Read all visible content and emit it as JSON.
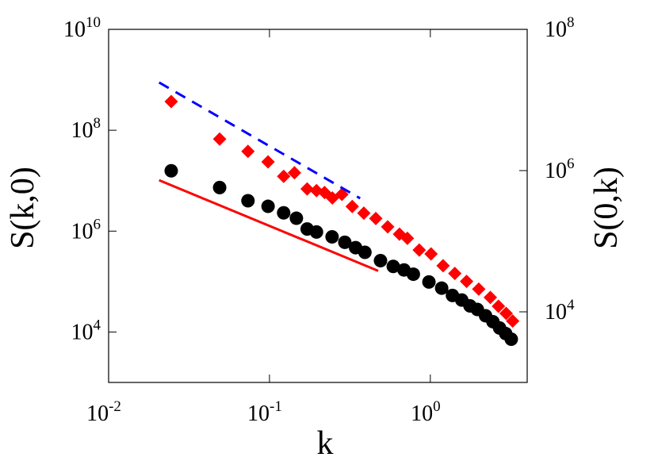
{
  "chart_data": {
    "type": "scatter",
    "xlabel": "k",
    "ylabel": "S(k,0)",
    "y2label": "S(0,k)",
    "xscale": "log",
    "yscale": "log",
    "y2scale": "log",
    "xlim": [
      0.01,
      4
    ],
    "ylim": [
      1000,
      10000000000
    ],
    "y2lim": [
      1000,
      100000000
    ],
    "xticks": [
      {
        "value": 0.01,
        "label": "10^-2"
      },
      {
        "value": 0.1,
        "label": "10^-1"
      },
      {
        "value": 1,
        "label": "10^0"
      }
    ],
    "yticks": [
      {
        "value": 10000,
        "label": "10^4"
      },
      {
        "value": 1000000,
        "label": "10^6"
      },
      {
        "value": 100000000,
        "label": "10^8"
      },
      {
        "value": 10000000000,
        "label": "10^10"
      }
    ],
    "y2ticks": [
      {
        "value": 10000,
        "label": "10^4"
      },
      {
        "value": 1000000,
        "label": "10^6"
      },
      {
        "value": 100000000,
        "label": "10^8"
      }
    ],
    "series": [
      {
        "color": "#000000",
        "marker": "circle",
        "x": [
          0.0245,
          0.049,
          0.0735,
          0.098,
          0.1225,
          0.147,
          0.1715,
          0.196,
          0.245,
          0.294,
          0.343,
          0.392,
          0.49,
          0.588,
          0.686,
          0.784,
          0.98,
          1.176,
          1.372,
          1.568,
          1.764,
          1.96,
          2.205,
          2.45,
          2.695,
          2.94,
          3.185
        ],
        "values": [
          15700000,
          7300000,
          4000000,
          3100000,
          2300000,
          1800000,
          1100000,
          960000,
          770000,
          600000,
          470000,
          380000,
          260000,
          200000,
          170000,
          140000,
          98000,
          74000,
          53000,
          43000,
          33000,
          28000,
          21000,
          16000,
          12000,
          9300,
          7200
        ]
      },
      {
        "color": "#ff0000",
        "marker": "diamond",
        "axis": "y2",
        "x": [
          0.0245,
          0.049,
          0.0735,
          0.098,
          0.1225,
          0.143,
          0.1715,
          0.196,
          0.22,
          0.246,
          0.282,
          0.327,
          0.386,
          0.458,
          0.543,
          0.643,
          0.72,
          0.853,
          1.01,
          1.2,
          1.42,
          1.68,
          2.0,
          2.36,
          2.65,
          2.96,
          3.25
        ],
        "values": [
          9500000,
          2800000,
          1870000,
          1330000,
          830000,
          930000,
          550000,
          520000,
          490000,
          410000,
          460000,
          310000,
          250000,
          210000,
          160000,
          126000,
          110000,
          75000,
          66000,
          45000,
          35000,
          27000,
          21000,
          16000,
          12000,
          9500,
          7400
        ]
      },
      {
        "color": "#ff0000",
        "marker": "none",
        "line": "solid",
        "x": [
          0.0206,
          0.474
        ],
        "values": [
          10200000,
          163000
        ]
      },
      {
        "color": "#0000ff",
        "marker": "none",
        "line": "dashed",
        "axis": "y2",
        "x": [
          0.0206,
          0.366
        ],
        "values": [
          17700000,
          405000
        ]
      }
    ]
  }
}
